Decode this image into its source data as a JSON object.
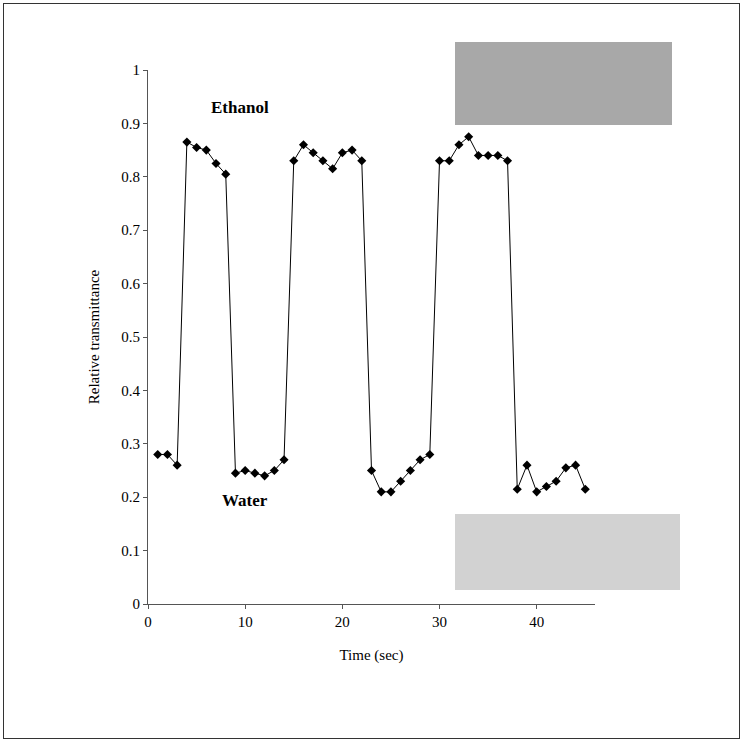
{
  "chart_data": {
    "type": "line",
    "x_label": "Time (sec)",
    "y_label": "Relative transmittance",
    "annotations": [
      "Ethanol",
      "Water"
    ],
    "x": [
      1,
      2,
      3,
      4,
      5,
      6,
      7,
      8,
      9,
      10,
      11,
      12,
      13,
      14,
      15,
      16,
      17,
      18,
      19,
      20,
      21,
      22,
      23,
      24,
      25,
      26,
      27,
      28,
      29,
      30,
      31,
      32,
      33,
      34,
      35,
      36,
      37,
      38,
      39,
      40,
      41,
      42,
      43,
      44,
      45
    ],
    "values": [
      0.28,
      0.28,
      0.26,
      0.865,
      0.855,
      0.85,
      0.825,
      0.805,
      0.245,
      0.25,
      0.245,
      0.24,
      0.25,
      0.27,
      0.83,
      0.86,
      0.845,
      0.83,
      0.815,
      0.845,
      0.85,
      0.83,
      0.25,
      0.21,
      0.21,
      0.23,
      0.25,
      0.27,
      0.28,
      0.83,
      0.83,
      0.86,
      0.875,
      0.84,
      0.84,
      0.84,
      0.83,
      0.215,
      0.26,
      0.21,
      0.22,
      0.23,
      0.255,
      0.26,
      0.215
    ],
    "color": "#000000",
    "marker": "diamond",
    "line_style": "solid",
    "xlim": [
      0,
      46
    ],
    "xticks": [
      0,
      10,
      20,
      30,
      40
    ],
    "ylim": [
      0,
      1
    ],
    "yticks": [
      0,
      0.1,
      0.2,
      0.3,
      0.4,
      0.5,
      0.6,
      0.7,
      0.8,
      0.9,
      1
    ],
    "grid": false
  }
}
